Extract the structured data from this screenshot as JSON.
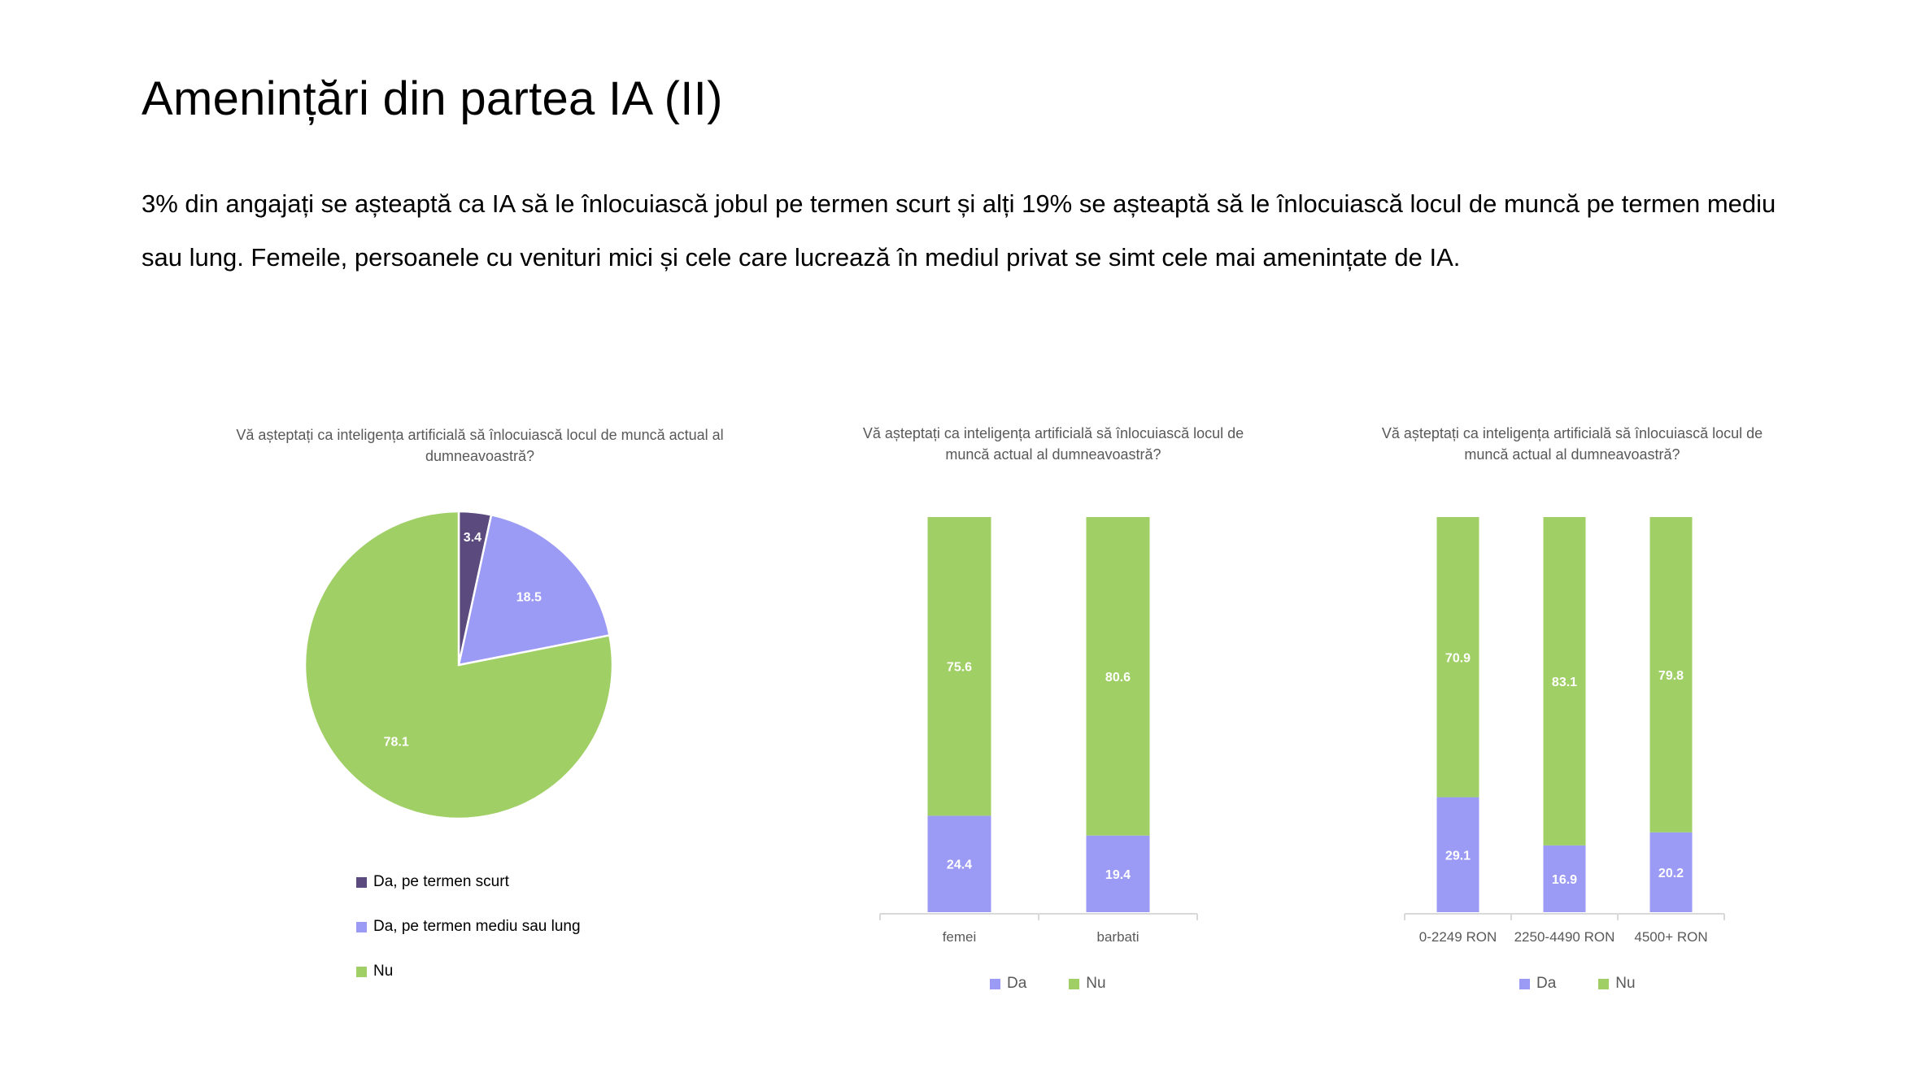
{
  "slide": {
    "title": "Amenințări din partea IA (II)",
    "text": "3% din angajați se așteaptă ca IA să le înlocuiască jobul pe termen scurt și alți 19% se așteaptă să le înlocuiască locul de muncă pe termen mediu sau lung. Femeile, persoanele cu venituri mici și cele care lucrează în mediul privat se simt cele mai amenințate de IA."
  },
  "colors": {
    "dark_purple": "#5b4a7e",
    "periwinkle": "#9b9af5",
    "green": "#a0cf66"
  },
  "chart_data": [
    {
      "type": "pie",
      "title": "Vă așteptați ca inteligența artificială să înlocuiască locul de muncă actual al dumneavoastră?",
      "labels": [
        "Da, pe termen scurt",
        "Da, pe termen mediu sau lung",
        "Nu"
      ],
      "values": [
        3.4,
        18.5,
        78.1
      ],
      "colors": [
        "#5b4a7e",
        "#9b9af5",
        "#a0cf66"
      ],
      "legend": "bottom"
    },
    {
      "type": "bar",
      "stacked": true,
      "title": "Vă așteptați ca inteligența artificială să înlocuiască locul de muncă actual al dumneavoastră?",
      "categories": [
        "femei",
        "barbati"
      ],
      "series": [
        {
          "name": "Da",
          "values": [
            24.4,
            19.4
          ],
          "color": "#9b9af5"
        },
        {
          "name": "Nu",
          "values": [
            75.6,
            80.6
          ],
          "color": "#a0cf66"
        }
      ],
      "ylim": [
        0,
        100
      ],
      "legend": "bottom"
    },
    {
      "type": "bar",
      "stacked": true,
      "title": "Vă așteptați ca inteligența artificială să înlocuiască locul de muncă actual al dumneavoastră?",
      "categories": [
        "0-2249 RON",
        "2250-4490 RON",
        "4500+ RON"
      ],
      "series": [
        {
          "name": "Da",
          "values": [
            29.1,
            16.9,
            20.2
          ],
          "color": "#9b9af5"
        },
        {
          "name": "Nu",
          "values": [
            70.9,
            83.1,
            79.8
          ],
          "color": "#a0cf66"
        }
      ],
      "ylim": [
        0,
        100
      ],
      "legend": "bottom"
    }
  ]
}
